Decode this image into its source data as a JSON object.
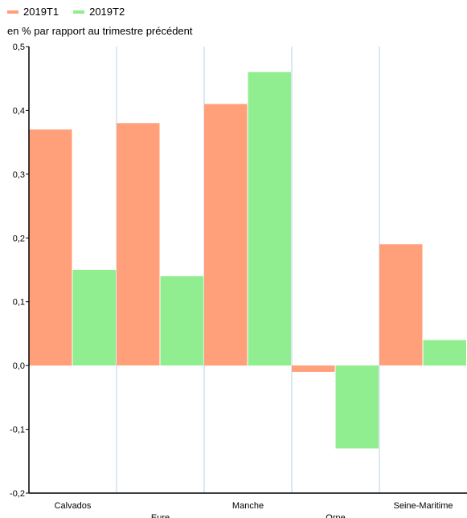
{
  "chart_data": {
    "type": "bar",
    "subtitle": "en % par rapport au trimestre précédent",
    "categories": [
      "Calvados",
      "Eure",
      "Manche",
      "Orne",
      "Seine-Maritime"
    ],
    "series": [
      {
        "name": "2019T1",
        "color": "#FFA07A",
        "values": [
          0.37,
          0.38,
          0.41,
          -0.01,
          0.19
        ]
      },
      {
        "name": "2019T2",
        "color": "#90EE90",
        "values": [
          0.15,
          0.14,
          0.46,
          -0.13,
          0.04
        ]
      }
    ],
    "ylim": [
      -0.2,
      0.5
    ],
    "yticks": [
      "-0,2",
      "-0,1",
      "0,0",
      "0,1",
      "0,2",
      "0,3",
      "0,4",
      "0,5"
    ],
    "grid": true,
    "legend_position": "top-left"
  }
}
